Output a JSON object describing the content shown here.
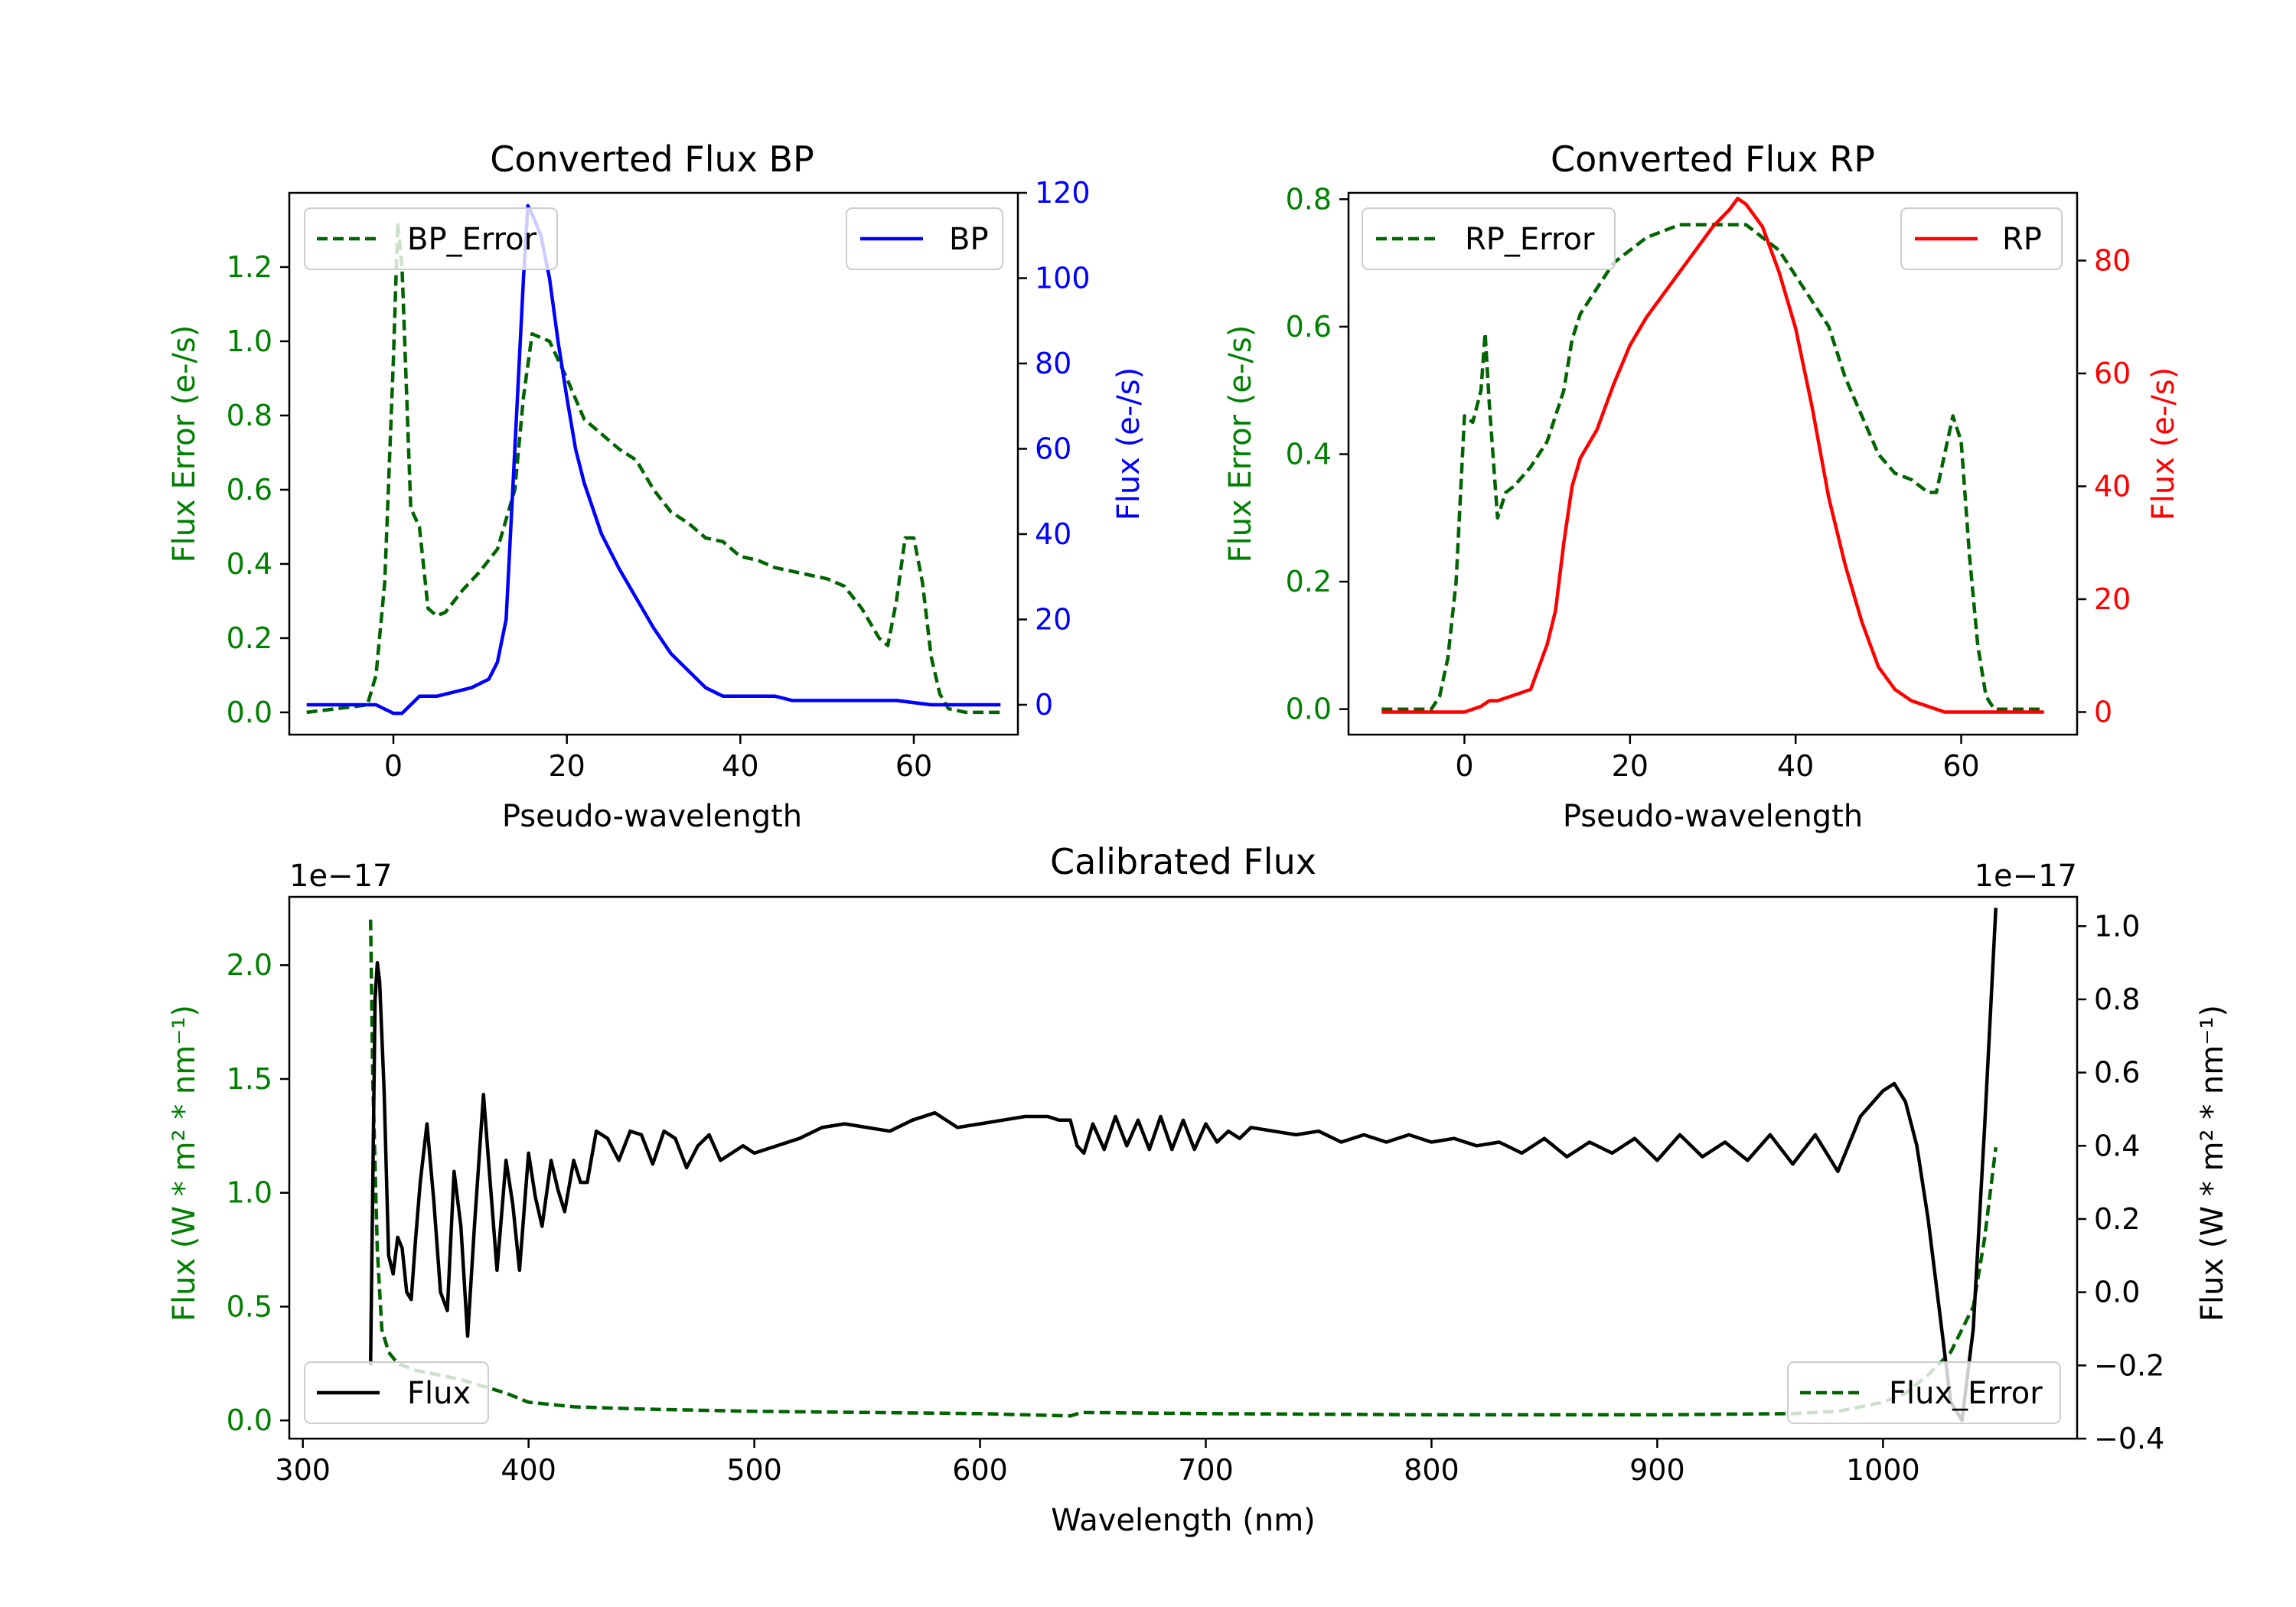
{
  "chart_data": [
    {
      "type": "line",
      "title": "Converted Flux BP",
      "xlabel": "Pseudo-wavelength",
      "ylabel_left": "Flux Error (e-/s)",
      "ylabel_right": "Flux (e-/s)",
      "xlim": [
        -12,
        72
      ],
      "ylim_left": [
        -0.06,
        1.4
      ],
      "ylim_right": [
        -7,
        120
      ],
      "xticks": [
        "0",
        "20",
        "40",
        "60"
      ],
      "yticks_left": [
        "0.0",
        "0.2",
        "0.4",
        "0.6",
        "0.8",
        "1.0",
        "1.2"
      ],
      "yticks_right": [
        "0",
        "20",
        "40",
        "60",
        "80",
        "100",
        "120"
      ],
      "colors": {
        "left": "#008000",
        "right": "#0000ff"
      },
      "series": [
        {
          "name": "BP_Error",
          "axis": "left",
          "style": "dashed",
          "color": "#006400",
          "x": [
            -10,
            -3,
            -2,
            -1,
            0,
            0.5,
            1,
            2,
            3,
            4,
            5,
            6,
            8,
            10,
            12,
            14,
            15,
            16,
            18,
            20,
            22,
            24,
            26,
            28,
            30,
            32,
            34,
            36,
            38,
            40,
            42,
            44,
            46,
            48,
            50,
            52,
            54,
            56,
            57,
            58,
            59,
            60,
            61,
            62,
            63,
            64,
            66,
            70
          ],
          "y": [
            0,
            0.02,
            0.1,
            0.35,
            0.95,
            1.32,
            1.2,
            0.55,
            0.5,
            0.28,
            0.26,
            0.27,
            0.33,
            0.38,
            0.44,
            0.6,
            0.85,
            1.02,
            1.0,
            0.9,
            0.79,
            0.75,
            0.71,
            0.68,
            0.6,
            0.54,
            0.51,
            0.47,
            0.46,
            0.42,
            0.41,
            0.39,
            0.38,
            0.37,
            0.36,
            0.34,
            0.28,
            0.2,
            0.18,
            0.3,
            0.47,
            0.47,
            0.35,
            0.15,
            0.05,
            0.01,
            0,
            0
          ]
        },
        {
          "name": "BP",
          "axis": "right",
          "style": "solid",
          "color": "#0000ff",
          "x": [
            -10,
            -2,
            -1,
            0,
            1,
            2,
            3,
            5,
            7,
            9,
            11,
            12,
            13,
            14,
            15,
            15.5,
            16,
            17,
            18,
            19,
            20,
            21,
            22,
            24,
            26,
            28,
            30,
            32,
            34,
            36,
            38,
            40,
            42,
            44,
            46,
            50,
            54,
            58,
            62,
            66,
            70
          ],
          "y": [
            0,
            0,
            -1,
            -2,
            -2,
            0,
            2,
            2,
            3,
            4,
            6,
            10,
            20,
            60,
            100,
            117,
            115,
            110,
            100,
            85,
            72,
            60,
            52,
            40,
            32,
            25,
            18,
            12,
            8,
            4,
            2,
            2,
            2,
            2,
            1,
            1,
            1,
            1,
            0,
            0,
            0
          ]
        }
      ],
      "legend": [
        {
          "label": "BP_Error",
          "position": "upper-left"
        },
        {
          "label": "BP",
          "position": "upper-right"
        }
      ]
    },
    {
      "type": "line",
      "title": "Converted Flux RP",
      "xlabel": "Pseudo-wavelength",
      "ylabel_left": "Flux Error (e-/s)",
      "ylabel_right": "Flux (e-/s)",
      "xlim": [
        -14,
        74
      ],
      "ylim_left": [
        -0.04,
        0.81
      ],
      "ylim_right": [
        -4,
        92
      ],
      "xticks": [
        "0",
        "20",
        "40",
        "60"
      ],
      "yticks_left": [
        "0.0",
        "0.2",
        "0.4",
        "0.6",
        "0.8"
      ],
      "yticks_right": [
        "0",
        "20",
        "40",
        "60",
        "80"
      ],
      "colors": {
        "left": "#008000",
        "right": "#ff0000"
      },
      "series": [
        {
          "name": "RP_Error",
          "axis": "left",
          "style": "dashed",
          "color": "#006400",
          "x": [
            -10,
            -4,
            -3,
            -2,
            -1,
            0,
            1,
            2,
            2.5,
            3,
            4,
            5,
            6,
            8,
            10,
            12,
            13,
            14,
            16,
            18,
            20,
            22,
            24,
            26,
            28,
            30,
            32,
            34,
            36,
            38,
            40,
            42,
            44,
            46,
            48,
            50,
            52,
            54,
            56,
            57,
            58,
            59,
            60,
            61,
            62,
            63,
            64,
            70
          ],
          "y": [
            0,
            0,
            0.02,
            0.08,
            0.2,
            0.46,
            0.45,
            0.5,
            0.59,
            0.48,
            0.3,
            0.34,
            0.35,
            0.38,
            0.42,
            0.5,
            0.58,
            0.62,
            0.66,
            0.7,
            0.72,
            0.74,
            0.75,
            0.76,
            0.76,
            0.76,
            0.76,
            0.76,
            0.74,
            0.72,
            0.68,
            0.64,
            0.6,
            0.52,
            0.46,
            0.4,
            0.37,
            0.36,
            0.34,
            0.34,
            0.4,
            0.46,
            0.42,
            0.24,
            0.1,
            0.02,
            0,
            0
          ]
        },
        {
          "name": "RP",
          "axis": "right",
          "style": "solid",
          "color": "#ff0000",
          "x": [
            -10,
            -2,
            0,
            2,
            3,
            4,
            6,
            8,
            10,
            11,
            12,
            13,
            14,
            16,
            18,
            20,
            22,
            24,
            26,
            28,
            30,
            32,
            33,
            34,
            36,
            38,
            40,
            42,
            44,
            46,
            48,
            50,
            52,
            54,
            56,
            58,
            60,
            62,
            66,
            70
          ],
          "y": [
            0,
            0,
            0,
            1,
            2,
            2,
            3,
            4,
            12,
            18,
            30,
            40,
            45,
            50,
            58,
            65,
            70,
            74,
            78,
            82,
            86,
            89,
            91,
            90,
            86,
            78,
            68,
            54,
            38,
            26,
            16,
            8,
            4,
            2,
            1,
            0,
            0,
            0,
            0,
            0
          ]
        }
      ],
      "legend": [
        {
          "label": "RP_Error",
          "position": "upper-left"
        },
        {
          "label": "RP",
          "position": "upper-right"
        }
      ]
    },
    {
      "type": "line",
      "title": "Calibrated Flux",
      "xlabel": "Wavelength (nm)",
      "ylabel_left": "Flux (W * m² * nm⁻¹)",
      "ylabel_right": "Flux (W * m² * nm⁻¹)",
      "offset_left": "1e−17",
      "offset_right": "1e−17",
      "xlim": [
        294,
        1086
      ],
      "ylim_left": [
        -0.08,
        2.3
      ],
      "ylim_right": [
        -0.4,
        1.08
      ],
      "xticks": [
        "300",
        "400",
        "500",
        "600",
        "700",
        "800",
        "900",
        "1000"
      ],
      "yticks_left": [
        "0.0",
        "0.5",
        "1.0",
        "1.5",
        "2.0"
      ],
      "yticks_right": [
        "−0.4",
        "−0.2",
        "0.0",
        "0.2",
        "0.4",
        "0.6",
        "0.8",
        "1.0"
      ],
      "colors": {
        "left": "#008000",
        "right": "#000000"
      },
      "series": [
        {
          "name": "Flux_Error",
          "axis": "left",
          "style": "dashed",
          "color": "#006400",
          "x": [
            330,
            331,
            333,
            335,
            338,
            342,
            350,
            360,
            370,
            380,
            390,
            400,
            420,
            450,
            500,
            550,
            600,
            640,
            645,
            700,
            800,
            900,
            960,
            980,
            1000,
            1010,
            1020,
            1030,
            1040,
            1045,
            1050
          ],
          "y": [
            2.2,
            1.5,
            0.75,
            0.4,
            0.3,
            0.25,
            0.22,
            0.2,
            0.18,
            0.15,
            0.12,
            0.08,
            0.06,
            0.05,
            0.04,
            0.035,
            0.03,
            0.02,
            0.035,
            0.03,
            0.025,
            0.025,
            0.03,
            0.04,
            0.08,
            0.12,
            0.2,
            0.3,
            0.5,
            0.8,
            1.2
          ]
        },
        {
          "name": "Flux",
          "axis": "right",
          "style": "solid",
          "color": "#000000",
          "x": [
            330,
            331,
            332,
            333,
            334,
            336,
            338,
            340,
            342,
            344,
            346,
            348,
            350,
            352,
            355,
            358,
            361,
            364,
            367,
            370,
            373,
            376,
            380,
            383,
            386,
            390,
            393,
            396,
            400,
            403,
            406,
            410,
            413,
            416,
            420,
            423,
            426,
            430,
            435,
            440,
            445,
            450,
            455,
            460,
            465,
            470,
            475,
            480,
            485,
            490,
            495,
            500,
            505,
            510,
            520,
            530,
            540,
            550,
            560,
            570,
            580,
            590,
            600,
            610,
            620,
            630,
            635,
            640,
            643,
            646,
            650,
            655,
            660,
            665,
            670,
            675,
            680,
            685,
            690,
            695,
            700,
            705,
            710,
            715,
            720,
            730,
            740,
            750,
            760,
            770,
            780,
            790,
            800,
            810,
            820,
            830,
            840,
            850,
            860,
            870,
            880,
            890,
            900,
            910,
            920,
            930,
            940,
            950,
            960,
            970,
            980,
            990,
            1000,
            1005,
            1010,
            1015,
            1020,
            1025,
            1030,
            1035,
            1040,
            1045,
            1050
          ],
          "y": [
            -0.2,
            0.3,
            0.8,
            0.9,
            0.85,
            0.55,
            0.1,
            0.05,
            0.15,
            0.12,
            0.0,
            -0.02,
            0.15,
            0.3,
            0.46,
            0.25,
            0.0,
            -0.05,
            0.33,
            0.18,
            -0.12,
            0.18,
            0.54,
            0.3,
            0.06,
            0.36,
            0.24,
            0.06,
            0.38,
            0.26,
            0.18,
            0.36,
            0.28,
            0.22,
            0.36,
            0.3,
            0.3,
            0.44,
            0.42,
            0.36,
            0.44,
            0.43,
            0.35,
            0.44,
            0.42,
            0.34,
            0.4,
            0.43,
            0.36,
            0.38,
            0.4,
            0.38,
            0.39,
            0.4,
            0.42,
            0.45,
            0.46,
            0.45,
            0.44,
            0.47,
            0.49,
            0.45,
            0.46,
            0.47,
            0.48,
            0.48,
            0.47,
            0.47,
            0.4,
            0.38,
            0.46,
            0.39,
            0.48,
            0.4,
            0.47,
            0.39,
            0.48,
            0.39,
            0.47,
            0.39,
            0.46,
            0.41,
            0.44,
            0.42,
            0.45,
            0.44,
            0.43,
            0.44,
            0.41,
            0.43,
            0.41,
            0.43,
            0.41,
            0.42,
            0.4,
            0.41,
            0.38,
            0.42,
            0.37,
            0.41,
            0.38,
            0.42,
            0.36,
            0.43,
            0.37,
            0.41,
            0.36,
            0.43,
            0.35,
            0.43,
            0.33,
            0.48,
            0.55,
            0.57,
            0.52,
            0.4,
            0.2,
            -0.05,
            -0.3,
            -0.35,
            -0.1,
            0.45,
            1.05
          ]
        }
      ],
      "legend": [
        {
          "label": "Flux",
          "position": "lower-left"
        },
        {
          "label": "Flux_Error",
          "position": "lower-right"
        }
      ]
    }
  ]
}
